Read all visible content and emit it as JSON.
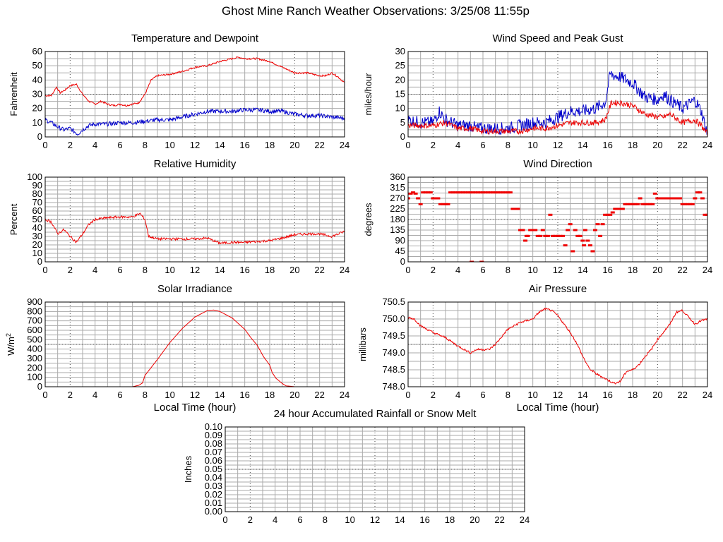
{
  "title": "Ghost Mine Ranch Weather Observations: 3/25/08 11:55p",
  "colors": {
    "red": "#ee0000",
    "blue": "#0000cc",
    "grid": "#aaaaaa",
    "frame": "#000000"
  },
  "chart_data": [
    {
      "id": "temperature",
      "type": "line",
      "title": "Temperature and Dewpoint",
      "xlabel": "",
      "ylabel": "Fahrenheit",
      "xlim": [
        0,
        24
      ],
      "ylim": [
        0,
        60
      ],
      "xticks": [
        0,
        2,
        4,
        6,
        8,
        10,
        12,
        14,
        16,
        18,
        20,
        22,
        24
      ],
      "yticks": [
        "0",
        "10",
        "20",
        "30",
        "40",
        "50",
        "60"
      ],
      "series": [
        {
          "color": "#ee0000",
          "noise": 0.6,
          "x": [
            0,
            0.5,
            0.9,
            1.2,
            1.6,
            2.0,
            2.5,
            3.0,
            3.5,
            4.0,
            4.5,
            5.0,
            5.5,
            6.0,
            6.5,
            7.0,
            7.5,
            8.0,
            8.5,
            9.0,
            10.0,
            11.0,
            12.0,
            13.0,
            14.0,
            15.0,
            15.5,
            16.0,
            17.0,
            18.0,
            19.0,
            20.0,
            21.0,
            22.0,
            22.5,
            23.0,
            23.5,
            24.0
          ],
          "y": [
            29,
            29,
            35,
            31,
            33,
            36,
            37,
            30,
            25,
            23,
            25,
            23,
            22,
            23,
            22,
            23,
            24,
            30,
            40,
            43,
            44,
            46,
            49,
            50,
            53,
            55,
            56,
            55,
            55,
            53,
            49,
            45,
            45,
            43,
            43,
            45,
            42,
            38
          ]
        },
        {
          "color": "#0000cc",
          "noise": 1.5,
          "x": [
            0,
            0.5,
            1.0,
            1.5,
            2.0,
            2.6,
            3.0,
            3.5,
            4.0,
            5.0,
            6.0,
            7.0,
            8.0,
            9.0,
            10.0,
            11.0,
            12.0,
            13.0,
            14.0,
            15.0,
            16.0,
            17.0,
            18.0,
            19.0,
            20.0,
            21.0,
            22.0,
            23.0,
            24.0
          ],
          "y": [
            12,
            10,
            7,
            5,
            6,
            2,
            5,
            8,
            9,
            9,
            10,
            10,
            11,
            12,
            12,
            14,
            16,
            18,
            18,
            18,
            19,
            19,
            18,
            18,
            16,
            15,
            15,
            14,
            13
          ]
        }
      ]
    },
    {
      "id": "wind-speed",
      "type": "line",
      "title": "Wind Speed and Peak Gust",
      "xlabel": "",
      "ylabel": "miles/hour",
      "xlim": [
        0,
        24
      ],
      "ylim": [
        0,
        30
      ],
      "xticks": [
        0,
        2,
        4,
        6,
        8,
        10,
        12,
        14,
        16,
        18,
        20,
        22,
        24
      ],
      "yticks": [
        "0",
        "5",
        "10",
        "15",
        "20",
        "25",
        "30"
      ],
      "series": [
        {
          "color": "#0000cc",
          "noise": 2.2,
          "x": [
            0,
            1.0,
            2.0,
            2.5,
            3.0,
            4.0,
            5.0,
            5.5,
            6.0,
            7.0,
            8.0,
            9.0,
            10.0,
            11.0,
            12.0,
            13.0,
            14.0,
            15.0,
            15.8,
            16.2,
            17.0,
            18.0,
            19.0,
            20.0,
            20.5,
            21.0,
            22.0,
            23.0,
            23.5,
            24.0
          ],
          "y": [
            6,
            5,
            5,
            9,
            6,
            4,
            4,
            3,
            3,
            3,
            3,
            4,
            5,
            5,
            7,
            9,
            9,
            10,
            12,
            22,
            21,
            19,
            14,
            13,
            15,
            13,
            10,
            13,
            9,
            1
          ]
        },
        {
          "color": "#ee0000",
          "noise": 1.0,
          "x": [
            0,
            1.0,
            2.0,
            3.0,
            4.0,
            5.0,
            6.0,
            7.0,
            8.0,
            9.0,
            10.0,
            11.0,
            12.0,
            13.0,
            14.0,
            15.0,
            15.8,
            16.3,
            17.0,
            18.0,
            19.0,
            20.0,
            20.5,
            21.0,
            22.0,
            23.0,
            23.5,
            24.0
          ],
          "y": [
            4,
            4,
            4,
            5,
            3,
            3,
            2,
            2,
            2,
            2,
            3,
            3,
            4,
            5,
            5,
            5,
            6,
            12,
            12,
            11,
            8,
            7,
            7,
            8,
            5,
            6,
            4,
            1
          ]
        }
      ]
    },
    {
      "id": "humidity",
      "type": "line",
      "title": "Relative Humidity",
      "xlabel": "",
      "ylabel": "Percent",
      "xlim": [
        0,
        24
      ],
      "ylim": [
        0,
        100
      ],
      "xticks": [
        0,
        2,
        4,
        6,
        8,
        10,
        12,
        14,
        16,
        18,
        20,
        22,
        24
      ],
      "yticks": [
        "0",
        "10",
        "20",
        "30",
        "40",
        "50",
        "60",
        "70",
        "80",
        "90",
        "100"
      ],
      "series": [
        {
          "color": "#ee0000",
          "noise": 1.4,
          "x": [
            0,
            0.5,
            1.0,
            1.5,
            2.0,
            2.5,
            3.0,
            3.5,
            4.0,
            5.0,
            6.0,
            7.0,
            7.6,
            8.0,
            8.3,
            9.0,
            10.0,
            11.0,
            12.0,
            13.0,
            14.0,
            15.0,
            16.0,
            17.0,
            18.0,
            19.0,
            20.0,
            21.0,
            22.0,
            23.0,
            24.0
          ],
          "y": [
            50,
            47,
            33,
            38,
            30,
            23,
            33,
            44,
            50,
            52,
            53,
            53,
            57,
            50,
            30,
            27,
            27,
            27,
            27,
            28,
            22,
            23,
            23,
            24,
            25,
            28,
            32,
            33,
            33,
            30,
            36
          ]
        }
      ]
    },
    {
      "id": "wind-direction",
      "type": "scatter",
      "title": "Wind Direction",
      "xlabel": "",
      "ylabel": "degrees",
      "xlim": [
        0,
        24
      ],
      "ylim": [
        0,
        360
      ],
      "xticks": [
        0,
        2,
        4,
        6,
        8,
        10,
        12,
        14,
        16,
        18,
        20,
        22,
        24
      ],
      "yticks": [
        "0",
        "45",
        "90",
        "135",
        "180",
        "225",
        "270",
        "315",
        "360"
      ],
      "series": [
        {
          "color": "#ee0000",
          "x": [
            0.0,
            0.2,
            0.4,
            0.6,
            0.8,
            1.0,
            1.2,
            1.4,
            1.6,
            1.8,
            2.0,
            2.2,
            2.4,
            2.6,
            2.8,
            3.0,
            3.2,
            3.4,
            3.6,
            3.8,
            4.0,
            4.2,
            4.4,
            4.6,
            4.8,
            5.0,
            5.1,
            5.2,
            5.4,
            5.6,
            5.8,
            5.9,
            6.0,
            6.2,
            6.4,
            6.6,
            6.8,
            7.0,
            7.2,
            7.4,
            7.6,
            7.8,
            8.0,
            8.2,
            8.4,
            8.6,
            8.8,
            9.0,
            9.2,
            9.4,
            9.5,
            9.6,
            9.8,
            10.0,
            10.2,
            10.4,
            10.6,
            10.8,
            11.0,
            11.2,
            11.4,
            11.6,
            11.8,
            12.0,
            12.2,
            12.4,
            12.6,
            12.8,
            13.0,
            13.2,
            13.4,
            13.6,
            13.8,
            14.0,
            14.1,
            14.2,
            14.4,
            14.6,
            14.8,
            15.0,
            15.2,
            15.4,
            15.6,
            15.8,
            16.0,
            16.2,
            16.4,
            16.6,
            16.8,
            17.0,
            17.2,
            17.4,
            17.6,
            17.8,
            18.0,
            18.2,
            18.4,
            18.6,
            18.8,
            19.0,
            19.2,
            19.4,
            19.6,
            19.8,
            20.0,
            20.2,
            20.4,
            20.6,
            20.8,
            21.0,
            21.2,
            21.4,
            21.6,
            21.8,
            22.0,
            22.2,
            22.4,
            22.6,
            22.8,
            23.0,
            23.2,
            23.4,
            23.6,
            23.8,
            24.0
          ],
          "y": [
            270,
            290,
            295,
            290,
            270,
            245,
            295,
            295,
            295,
            295,
            270,
            270,
            270,
            245,
            245,
            245,
            245,
            295,
            295,
            295,
            295,
            295,
            295,
            295,
            295,
            295,
            0,
            295,
            295,
            295,
            295,
            0,
            295,
            295,
            295,
            295,
            295,
            295,
            295,
            295,
            295,
            295,
            295,
            295,
            225,
            225,
            225,
            135,
            135,
            90,
            110,
            110,
            135,
            135,
            135,
            110,
            110,
            135,
            110,
            110,
            200,
            110,
            110,
            110,
            110,
            110,
            70,
            135,
            160,
            45,
            135,
            110,
            110,
            90,
            70,
            135,
            90,
            70,
            45,
            135,
            160,
            110,
            160,
            200,
            200,
            200,
            210,
            225,
            225,
            225,
            225,
            245,
            245,
            245,
            245,
            245,
            245,
            270,
            245,
            245,
            245,
            245,
            245,
            290,
            270,
            270,
            270,
            270,
            270,
            270,
            270,
            270,
            270,
            270,
            245,
            245,
            245,
            245,
            245,
            270,
            295,
            295,
            270,
            200,
            200
          ]
        }
      ]
    },
    {
      "id": "solar",
      "type": "line",
      "title": "Solar Irradiance",
      "xlabel": "Local Time (hour)",
      "ylabel": "W/m",
      "ylabel_sup": "2",
      "xlim": [
        0,
        24
      ],
      "ylim": [
        0,
        900
      ],
      "xticks": [
        0,
        2,
        4,
        6,
        8,
        10,
        12,
        14,
        16,
        18,
        20,
        22,
        24
      ],
      "yticks": [
        "0",
        "100",
        "200",
        "300",
        "400",
        "500",
        "600",
        "700",
        "800",
        "900"
      ],
      "series": [
        {
          "color": "#ee0000",
          "noise": 0,
          "x": [
            0,
            7.0,
            7.5,
            7.8,
            8.0,
            9.0,
            10.0,
            11.0,
            12.0,
            13.0,
            13.5,
            14.0,
            15.0,
            16.0,
            16.5,
            17.0,
            17.5,
            18.0,
            18.2,
            18.5,
            19.0,
            19.3,
            20.0,
            24.0
          ],
          "y": [
            0,
            0,
            15,
            40,
            120,
            290,
            470,
            620,
            740,
            810,
            815,
            800,
            730,
            610,
            520,
            440,
            320,
            230,
            150,
            90,
            35,
            10,
            0,
            0
          ]
        }
      ]
    },
    {
      "id": "pressure",
      "type": "line",
      "title": "Air Pressure",
      "xlabel": "Local Time (hour)",
      "ylabel": "millibars",
      "xlim": [
        0,
        24
      ],
      "ylim": [
        748.0,
        750.5
      ],
      "xticks": [
        0,
        2,
        4,
        6,
        8,
        10,
        12,
        14,
        16,
        18,
        20,
        22,
        24
      ],
      "yticks": [
        "748.0",
        "748.5",
        "749.0",
        "749.5",
        "750.0",
        "750.5"
      ],
      "series": [
        {
          "color": "#ee0000",
          "noise": 0.03,
          "x": [
            0,
            0.5,
            1.0,
            2.0,
            3.0,
            4.0,
            4.5,
            5.0,
            5.5,
            6.0,
            6.5,
            7.0,
            8.0,
            9.0,
            10.0,
            10.5,
            11.0,
            11.5,
            12.0,
            13.0,
            13.5,
            14.0,
            14.5,
            15.0,
            16.0,
            16.5,
            17.0,
            17.5,
            18.0,
            18.5,
            19.0,
            19.5,
            20.0,
            21.0,
            21.5,
            22.0,
            22.5,
            23.0,
            23.5,
            24.0
          ],
          "y": [
            750.05,
            750.0,
            749.8,
            749.6,
            749.45,
            749.2,
            749.1,
            749.0,
            749.1,
            749.1,
            749.1,
            749.25,
            749.7,
            749.9,
            750.0,
            750.2,
            750.3,
            750.25,
            750.1,
            749.6,
            749.3,
            748.9,
            748.55,
            748.4,
            748.2,
            748.1,
            748.15,
            748.45,
            748.5,
            748.65,
            748.9,
            749.1,
            749.4,
            749.85,
            750.2,
            750.25,
            750.05,
            749.85,
            749.95,
            750.0
          ]
        }
      ]
    },
    {
      "id": "rainfall",
      "type": "line",
      "title": "24 hour Accumulated Rainfall or Snow Melt",
      "xlabel": "",
      "ylabel": "Inches",
      "xlim": [
        0,
        24
      ],
      "ylim": [
        0,
        0.1
      ],
      "xticks": [
        0,
        2,
        4,
        6,
        8,
        10,
        12,
        14,
        16,
        18,
        20,
        22,
        24
      ],
      "yticks": [
        "0.00",
        "0.01",
        "0.02",
        "0.03",
        "0.04",
        "0.05",
        "0.06",
        "0.07",
        "0.08",
        "0.09",
        "0.10"
      ],
      "series": [
        {
          "color": "#ee0000",
          "noise": 0,
          "x": [
            0,
            24
          ],
          "y": [
            0,
            0
          ]
        }
      ]
    }
  ]
}
